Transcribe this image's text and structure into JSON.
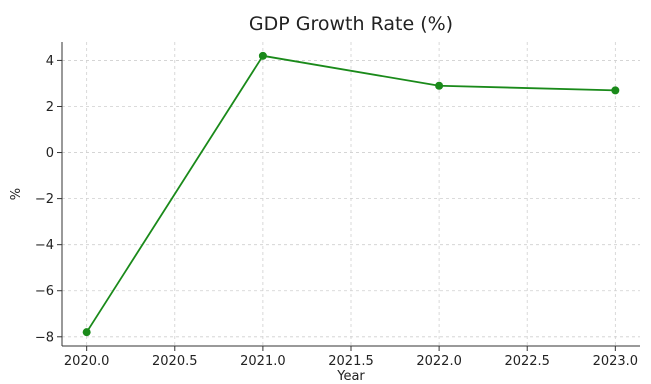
{
  "chart_data": {
    "type": "line",
    "title": "GDP Growth Rate (%)",
    "xlabel": "Year",
    "ylabel": "%",
    "x": [
      2020.0,
      2021.0,
      2022.0,
      2023.0
    ],
    "series": [
      {
        "values": [
          -7.8,
          4.2,
          2.9,
          2.7
        ],
        "color": "#1a8a1a"
      }
    ],
    "xlim": [
      2019.86,
      2023.14
    ],
    "ylim": [
      -8.4,
      4.8
    ],
    "xticks": [
      2020.0,
      2020.5,
      2021.0,
      2021.5,
      2022.0,
      2022.5,
      2023.0
    ],
    "xtick_labels": [
      "2020.0",
      "2020.5",
      "2021.0",
      "2021.5",
      "2022.0",
      "2022.5",
      "2023.0"
    ],
    "yticks": [
      -8,
      -6,
      -4,
      -2,
      0,
      2,
      4
    ],
    "ytick_labels": [
      "−8",
      "−6",
      "−4",
      "−2",
      "0",
      "2",
      "4"
    ],
    "grid": true,
    "marker": "circle"
  }
}
